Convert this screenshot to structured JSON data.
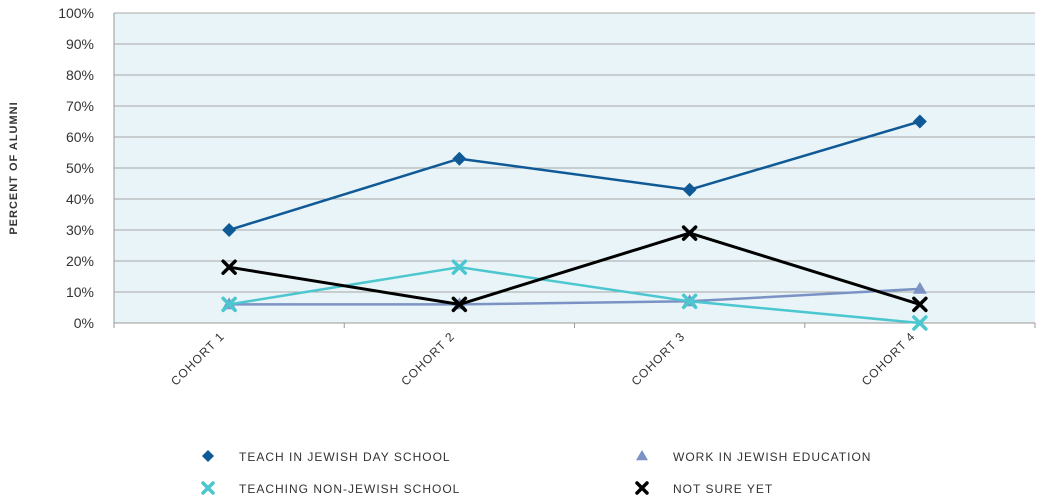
{
  "chart_data": {
    "type": "line",
    "title": "",
    "xlabel": "",
    "ylabel": "PERCENT OF ALUMNI",
    "categories": [
      "COHORT 1",
      "COHORT 2",
      "COHORT 3",
      "COHORT 4"
    ],
    "ylim": [
      0,
      100
    ],
    "yticks": [
      "0%",
      "10%",
      "20%",
      "30%",
      "40%",
      "50%",
      "60%",
      "70%",
      "80%",
      "90%",
      "100%"
    ],
    "grid": true,
    "legend_position": "bottom",
    "plot_background": "#e8f4f7",
    "series": [
      {
        "name": "TEACH IN JEWISH DAY SCHOOL",
        "values": [
          30,
          53,
          43,
          65
        ],
        "color": "#0f5a96",
        "marker": "diamond"
      },
      {
        "name": "WORK IN JEWISH EDUCATION",
        "values": [
          6,
          6,
          7,
          11
        ],
        "color": "#7b93c4",
        "marker": "triangle"
      },
      {
        "name": "TEACHING NON-JEWISH SCHOOL",
        "values": [
          6,
          18,
          7,
          0
        ],
        "color": "#4cc6cf",
        "marker": "x"
      },
      {
        "name": "NOT SURE YET",
        "values": [
          18,
          6,
          29,
          6
        ],
        "color": "#000000",
        "marker": "x"
      }
    ]
  }
}
